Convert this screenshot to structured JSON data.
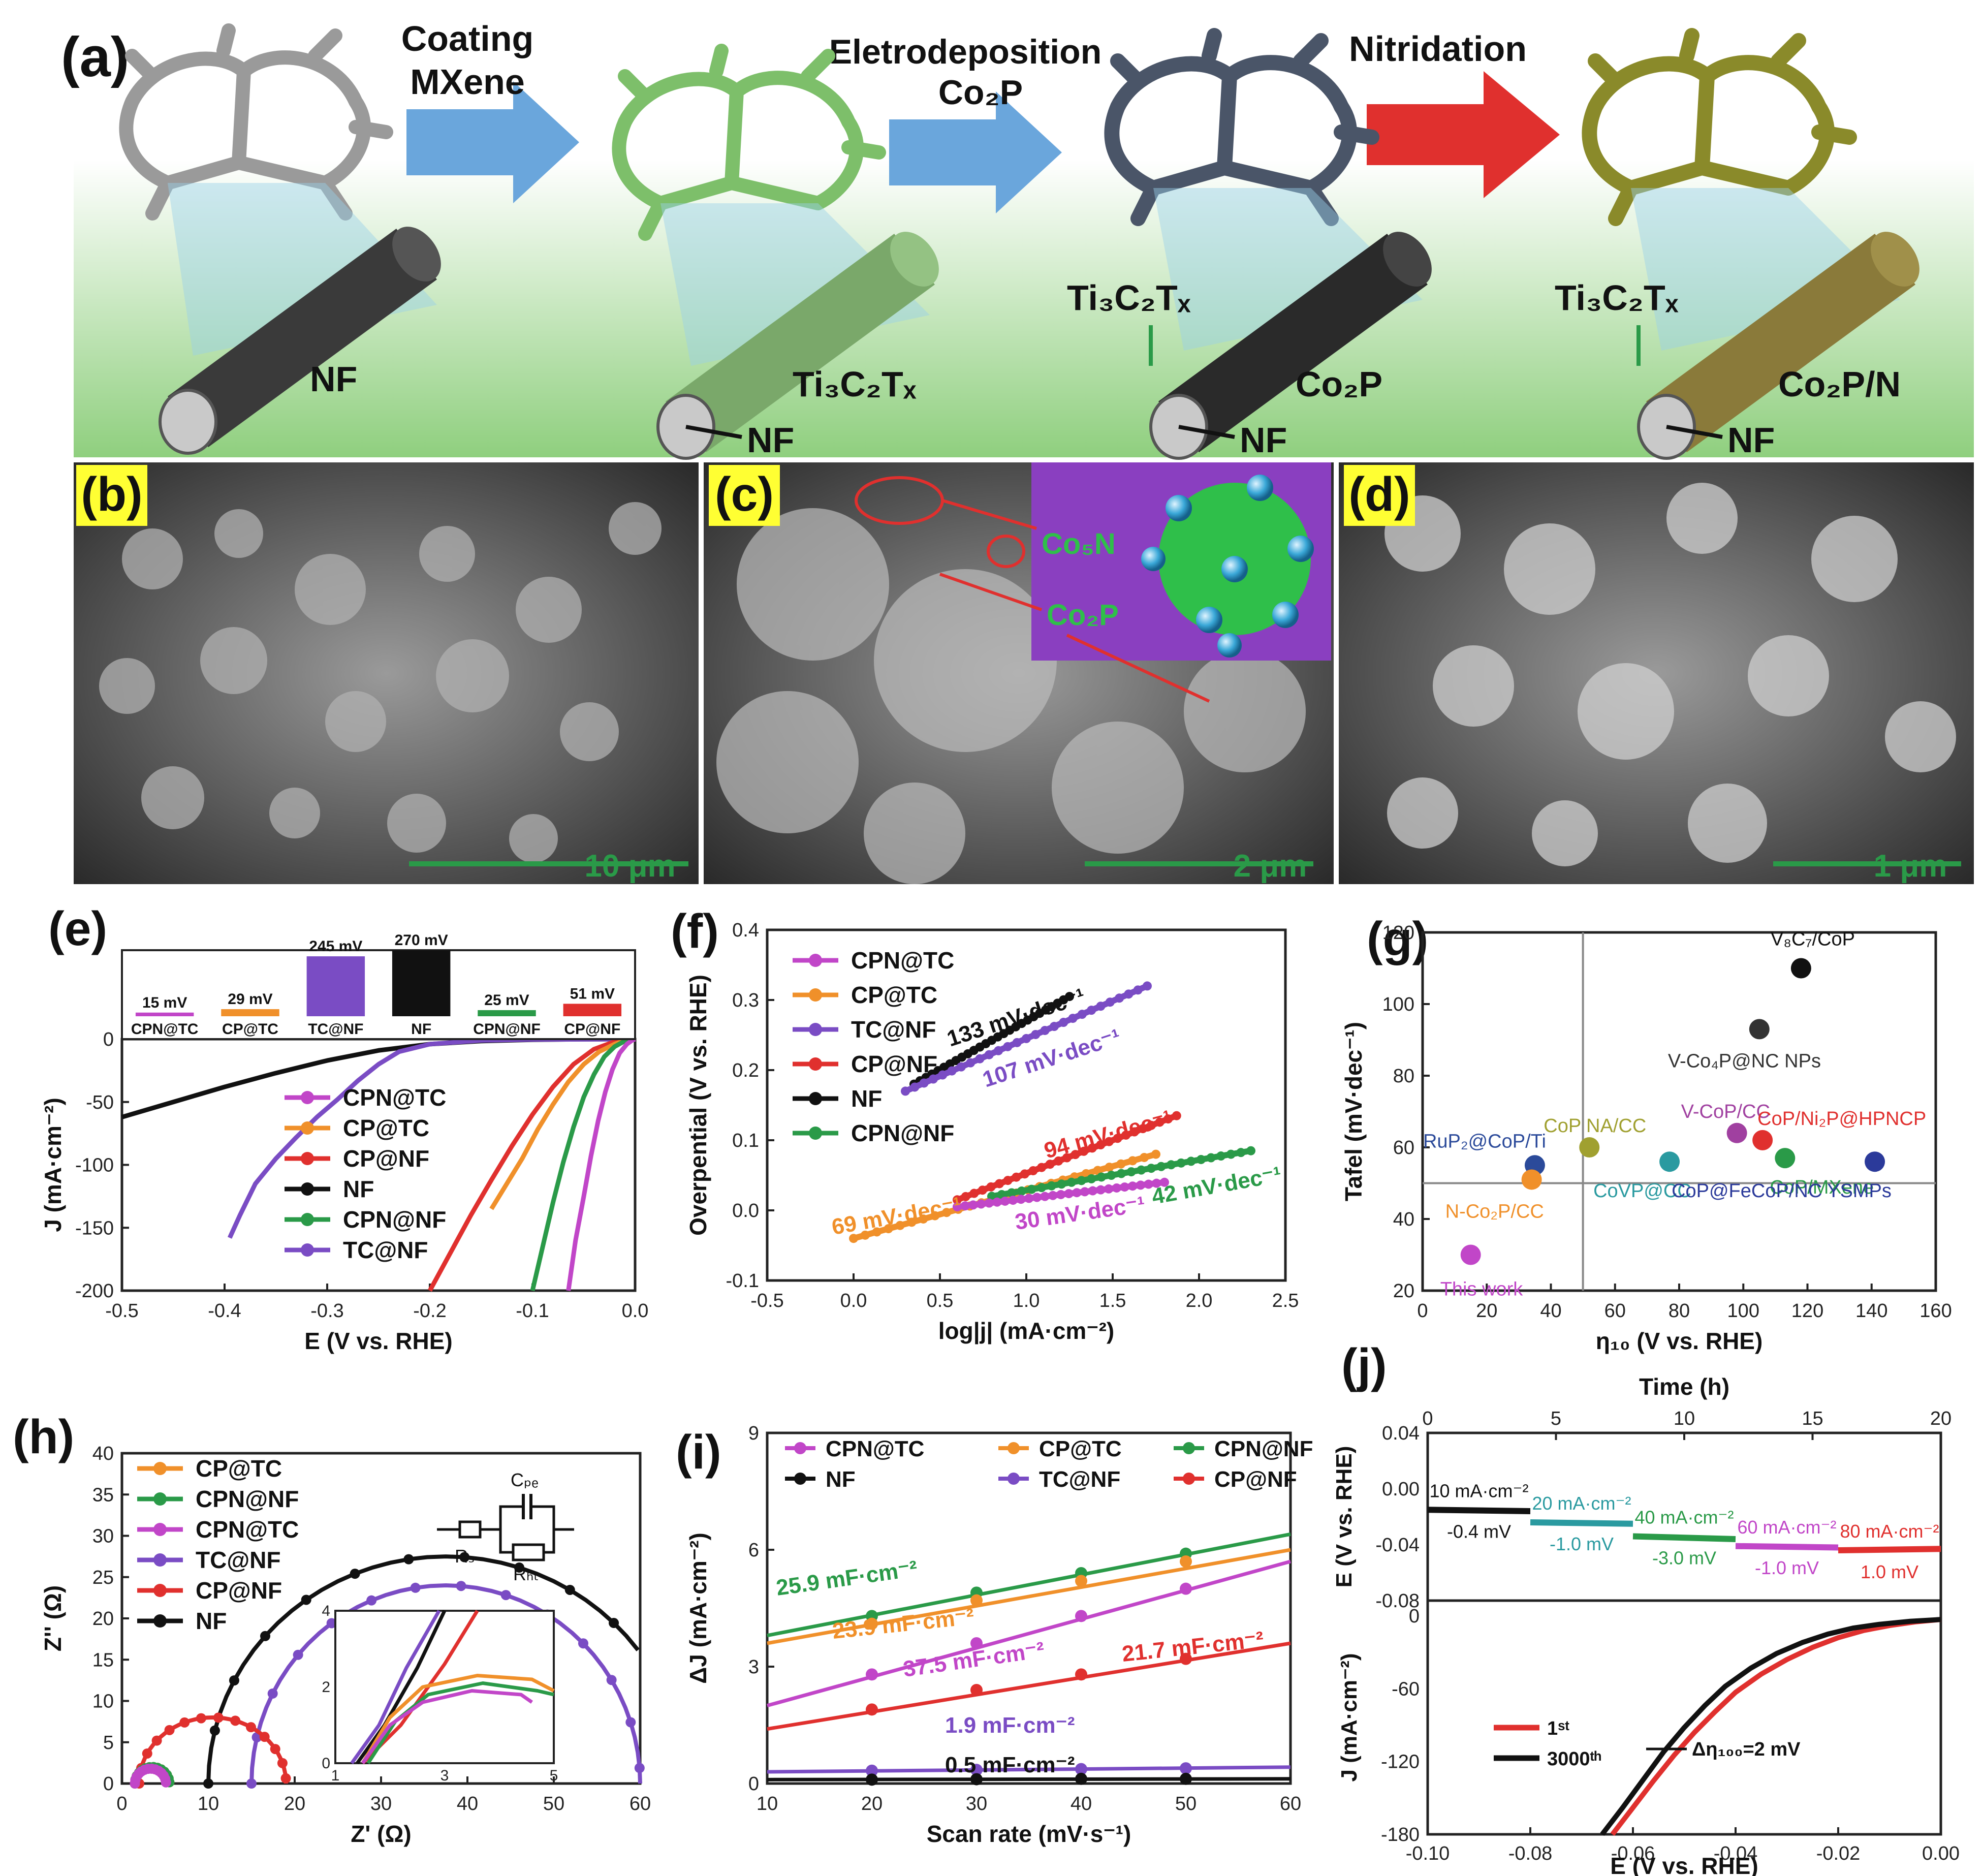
{
  "colors": {
    "CPN@TC": "#c146c8",
    "CP@TC": "#f0902a",
    "CP@NF": "#e0302e",
    "NF": "#111111",
    "CPN@NF": "#2a9a48",
    "TC@NF": "#7a4cc4",
    "panel_green": "#8fcf7e",
    "process_arrow": "#6aa6dc",
    "nitridation_arrow": "#e0302e"
  },
  "panel_a": {
    "label": "(a)",
    "arrow1": [
      "Coating",
      "MXene"
    ],
    "arrow2": [
      "Eletrodeposition",
      "Co₂P"
    ],
    "arrow3": "Nitridation",
    "rod1": "NF",
    "rod2_top": "Ti₃C₂Tₓ",
    "rod2_inner": "NF",
    "rod3_top": "Ti₃C₂Tₓ",
    "rod3_main": "Co₂P",
    "rod3_inner": "NF",
    "rod4_top": "Ti₃C₂Tₓ",
    "rod4_main": "Co₂P/N",
    "rod4_inner": "NF"
  },
  "panel_b": {
    "label": "(b)",
    "scale": "10 μm"
  },
  "panel_c": {
    "label": "(c)",
    "scale": "2 μm",
    "inset_1": "Co₅N",
    "inset_2": "Co₂P"
  },
  "panel_d": {
    "label": "(d)",
    "scale": "1 μm"
  },
  "panel_e": {
    "label": "(e)",
    "bars": [
      {
        "name": "CPN@TC",
        "value": "15 mV"
      },
      {
        "name": "CP@TC",
        "value": "29 mV"
      },
      {
        "name": "TC@NF",
        "value": "245 mV"
      },
      {
        "name": "NF",
        "value": "270 mV"
      },
      {
        "name": "CPN@NF",
        "value": "25 mV"
      },
      {
        "name": "CP@NF",
        "value": "51 mV"
      }
    ],
    "legend": [
      "CPN@TC",
      "CP@TC",
      "CP@NF",
      "NF",
      "CPN@NF",
      "TC@NF"
    ]
  },
  "panel_f": {
    "label": "(f)",
    "legend": [
      "CPN@TC",
      "CP@TC",
      "TC@NF",
      "CP@NF",
      "NF",
      "CPN@NF"
    ],
    "slopes": [
      "133 mV·dec⁻¹",
      "107 mV·dec⁻¹",
      "94 mV·dec⁻¹",
      "69 mV·dec⁻¹",
      "42 mV·dec⁻¹",
      "30 mV·dec⁻¹"
    ]
  },
  "panel_g": {
    "label": "(g)",
    "points": [
      {
        "name": "V₈C₇/CoP",
        "color": "#111111"
      },
      {
        "name": "V-Co₄P@NC NPs",
        "color": "#333333"
      },
      {
        "name": "CoP NA/CC",
        "color": "#a0a030"
      },
      {
        "name": "V-CoP/CC",
        "color": "#a040a0"
      },
      {
        "name": "CoP/Ni₂P@HPNCP",
        "color": "#e0302e"
      },
      {
        "name": "RuP₂@CoP/Ti",
        "color": "#2b4a9a"
      },
      {
        "name": "CoVP@CC",
        "color": "#2a9aa0"
      },
      {
        "name": "CoP/MXene",
        "color": "#2a9a48"
      },
      {
        "name": "N-Co₂P/CC",
        "color": "#f0902a"
      },
      {
        "name": "CoP@FeCoP/NC YSMPs",
        "color": "#2b3a9a"
      },
      {
        "name": "This work",
        "color": "#c146c8"
      }
    ]
  },
  "panel_h": {
    "label": "(h)",
    "legend": [
      "CP@TC",
      "CPN@NF",
      "CPN@TC",
      "TC@NF",
      "CP@NF",
      "NF"
    ],
    "circuit": [
      "Cₚₑ",
      "Rₛ",
      "Rₕₜ"
    ]
  },
  "panel_i": {
    "label": "(i)",
    "legend": [
      "CPN@TC",
      "CP@TC",
      "CPN@NF",
      "NF",
      "TC@NF",
      "CP@NF"
    ],
    "cdl": [
      "25.9 mF·cm⁻²",
      "23.9 mF·cm⁻²",
      "37.5 mF·cm⁻²",
      "21.7 mF·cm⁻²",
      "1.9 mF·cm⁻²",
      "0.5 mF·cm⁻²"
    ]
  },
  "panel_j": {
    "label": "(j)",
    "steps": [
      {
        "current": "10 mA·cm⁻²",
        "delta": "-0.4 mV"
      },
      {
        "current": "20 mA·cm⁻²",
        "delta": "-1.0 mV"
      },
      {
        "current": "40 mA·cm⁻²",
        "delta": "-3.0 mV"
      },
      {
        "current": "60 mA·cm⁻²",
        "delta": "-1.0 mV"
      },
      {
        "current": "80 mA·cm⁻²",
        "delta": "1.0 mV"
      }
    ],
    "legend": [
      "1ˢᵗ",
      "3000ᵗʰ"
    ],
    "delta_label": "Δη₁₀₀=2 mV"
  },
  "chart_data": [
    {
      "type": "line",
      "panel": "e",
      "xlabel": "E (V vs. RHE)",
      "ylabel": "J (mA·cm⁻²)",
      "xlim": [
        -0.5,
        0.0
      ],
      "ylim": [
        -200,
        0
      ],
      "xticks": [
        "-0.5",
        "-0.4",
        "-0.3",
        "-0.2",
        "-0.1",
        "0.0"
      ],
      "yticks": [
        "0",
        "-50",
        "-100",
        "-150",
        "-200"
      ],
      "series": [
        {
          "name": "NF",
          "x": [
            -0.5,
            -0.45,
            -0.4,
            -0.35,
            -0.3,
            -0.25,
            -0.2,
            -0.15,
            -0.1,
            -0.05,
            0.0
          ],
          "y": [
            -62,
            -50,
            -38,
            -27,
            -17,
            -9,
            -4,
            -1.5,
            -0.5,
            -0.1,
            0
          ]
        },
        {
          "name": "TC@NF",
          "x": [
            -0.395,
            -0.385,
            -0.37,
            -0.35,
            -0.33,
            -0.31,
            -0.29,
            -0.27,
            -0.25,
            -0.23,
            -0.2,
            -0.15,
            -0.1,
            0.0
          ],
          "y": [
            -158,
            -140,
            -115,
            -95,
            -78,
            -62,
            -48,
            -33,
            -20,
            -10,
            -4,
            -1,
            -0.3,
            0
          ]
        },
        {
          "name": "CP@NF",
          "x": [
            -0.2,
            -0.18,
            -0.16,
            -0.14,
            -0.12,
            -0.1,
            -0.08,
            -0.06,
            -0.04,
            -0.02,
            0.0
          ],
          "y": [
            -200,
            -170,
            -140,
            -112,
            -85,
            -60,
            -38,
            -20,
            -8,
            -2,
            0
          ]
        },
        {
          "name": "CP@TC",
          "x": [
            -0.14,
            -0.125,
            -0.11,
            -0.095,
            -0.08,
            -0.065,
            -0.05,
            -0.035,
            -0.02,
            -0.01,
            0.0
          ],
          "y": [
            -135,
            -115,
            -95,
            -72,
            -52,
            -34,
            -20,
            -10,
            -4,
            -1,
            0
          ]
        },
        {
          "name": "CPN@NF",
          "x": [
            -0.1,
            -0.09,
            -0.08,
            -0.07,
            -0.06,
            -0.05,
            -0.04,
            -0.03,
            -0.02,
            -0.01,
            0.0
          ],
          "y": [
            -200,
            -165,
            -130,
            -98,
            -70,
            -46,
            -28,
            -14,
            -6,
            -1.5,
            0
          ]
        },
        {
          "name": "CPN@TC",
          "x": [
            -0.065,
            -0.058,
            -0.05,
            -0.043,
            -0.036,
            -0.029,
            -0.022,
            -0.015,
            -0.008,
            -0.003,
            0.0
          ],
          "y": [
            -200,
            -160,
            -125,
            -93,
            -65,
            -42,
            -24,
            -11,
            -4,
            -1,
            0
          ]
        }
      ]
    },
    {
      "type": "bar",
      "panel": "e-inset",
      "ylabel": "",
      "categories": [
        "CPN@TC",
        "CP@TC",
        "TC@NF",
        "NF",
        "CPN@NF",
        "CP@NF"
      ],
      "values": [
        15,
        29,
        245,
        270,
        25,
        51
      ]
    },
    {
      "type": "scatter",
      "panel": "f",
      "xlabel": "log|j| (mA·cm⁻²)",
      "ylabel": "Overpential (V vs. RHE)",
      "xlim": [
        -0.5,
        2.5
      ],
      "ylim": [
        -0.1,
        0.4
      ],
      "xticks": [
        "-0.5",
        "0.0",
        "0.5",
        "1.0",
        "1.5",
        "2.0",
        "2.5"
      ],
      "yticks": [
        "-0.1",
        "0.0",
        "0.1",
        "0.2",
        "0.3",
        "0.4"
      ],
      "series": [
        {
          "name": "NF",
          "x_range": [
            0.35,
            1.25
          ],
          "y_range": [
            0.18,
            0.305
          ]
        },
        {
          "name": "TC@NF",
          "x_range": [
            0.3,
            1.7
          ],
          "y_range": [
            0.17,
            0.32
          ]
        },
        {
          "name": "CP@NF",
          "x_range": [
            0.6,
            1.87
          ],
          "y_range": [
            0.015,
            0.135
          ]
        },
        {
          "name": "CP@TC",
          "x_range": [
            0.0,
            1.75
          ],
          "y_range": [
            -0.04,
            0.08
          ]
        },
        {
          "name": "CPN@NF",
          "x_range": [
            0.8,
            2.3
          ],
          "y_range": [
            0.02,
            0.085
          ]
        },
        {
          "name": "CPN@TC",
          "x_range": [
            0.6,
            1.8
          ],
          "y_range": [
            0.005,
            0.04
          ]
        }
      ]
    },
    {
      "type": "scatter",
      "panel": "g",
      "xlabel": "η₁₀ (V vs. RHE)",
      "ylabel": "Tafel (mV·dec⁻¹)",
      "xlim": [
        0,
        160
      ],
      "ylim": [
        20,
        120
      ],
      "xticks": [
        "0",
        "20",
        "40",
        "60",
        "80",
        "100",
        "120",
        "140",
        "160"
      ],
      "yticks": [
        "20",
        "40",
        "60",
        "80",
        "100",
        "120"
      ],
      "series": [
        {
          "name": "V₈C₇/CoP",
          "x": [
            118
          ],
          "y": [
            110
          ]
        },
        {
          "name": "V-Co₄P@NC NPs",
          "x": [
            105
          ],
          "y": [
            93
          ]
        },
        {
          "name": "CoP NA/CC",
          "x": [
            52
          ],
          "y": [
            60
          ]
        },
        {
          "name": "V-CoP/CC",
          "x": [
            98
          ],
          "y": [
            64
          ]
        },
        {
          "name": "CoP/Ni₂P@HPNCP",
          "x": [
            106
          ],
          "y": [
            62
          ]
        },
        {
          "name": "RuP₂@CoP/Ti",
          "x": [
            35
          ],
          "y": [
            55
          ]
        },
        {
          "name": "CoVP@CC",
          "x": [
            77
          ],
          "y": [
            56
          ]
        },
        {
          "name": "CoP/MXene",
          "x": [
            113
          ],
          "y": [
            57
          ]
        },
        {
          "name": "N-Co₂P/CC",
          "x": [
            34
          ],
          "y": [
            51
          ]
        },
        {
          "name": "CoP@FeCoP/NC YSMPs",
          "x": [
            141
          ],
          "y": [
            56
          ]
        },
        {
          "name": "This work",
          "x": [
            15
          ],
          "y": [
            30
          ]
        }
      ]
    },
    {
      "type": "line",
      "panel": "h",
      "xlabel": "Z' (Ω)",
      "ylabel": "Z'' (Ω)",
      "xlim": [
        0,
        60
      ],
      "ylim": [
        0,
        40
      ],
      "xticks": [
        "0",
        "10",
        "20",
        "30",
        "40",
        "50",
        "60"
      ],
      "yticks": [
        "0",
        "5",
        "10",
        "15",
        "20",
        "25",
        "30",
        "35",
        "40"
      ],
      "series": [
        {
          "name": "NF",
          "center": 37.5,
          "radius": 27.5,
          "ymax": 27.5
        },
        {
          "name": "TC@NF",
          "center": 37.5,
          "radius": 22.5,
          "ymax": 24
        },
        {
          "name": "CP@NF",
          "center": 10.5,
          "radius": 8.5,
          "ymax": 8
        },
        {
          "name": "CP@TC",
          "center": 3.5,
          "radius": 2,
          "ymax": 2
        },
        {
          "name": "CPN@NF",
          "center": 3.5,
          "radius": 2,
          "ymax": 2
        },
        {
          "name": "CPN@TC",
          "center": 3.3,
          "radius": 1.8,
          "ymax": 1.8
        }
      ]
    },
    {
      "type": "scatter",
      "panel": "i",
      "xlabel": "Scan rate (mV·s⁻¹)",
      "ylabel": "ΔJ (mA·cm⁻²)",
      "xlim": [
        10,
        60
      ],
      "ylim": [
        0,
        9
      ],
      "xticks": [
        "10",
        "20",
        "30",
        "40",
        "50",
        "60"
      ],
      "yticks": [
        "0",
        "3",
        "6",
        "9"
      ],
      "x": [
        20,
        30,
        40,
        50
      ],
      "series": [
        {
          "name": "CPN@NF",
          "y": [
            4.3,
            4.9,
            5.4,
            5.9
          ],
          "line": [
            3.8,
            6.4
          ]
        },
        {
          "name": "CP@TC",
          "y": [
            4.1,
            4.7,
            5.2,
            5.7
          ],
          "line": [
            3.6,
            6.0
          ]
        },
        {
          "name": "CPN@TC",
          "y": [
            2.8,
            3.6,
            4.3,
            5.0
          ],
          "line": [
            2.0,
            5.7
          ]
        },
        {
          "name": "CP@NF",
          "y": [
            1.9,
            2.4,
            2.8,
            3.2
          ],
          "line": [
            1.4,
            3.6
          ]
        },
        {
          "name": "TC@NF",
          "y": [
            0.33,
            0.35,
            0.37,
            0.39
          ],
          "line": [
            0.3,
            0.42
          ]
        },
        {
          "name": "NF",
          "y": [
            0.1,
            0.11,
            0.12,
            0.12
          ],
          "line": [
            0.1,
            0.12
          ]
        }
      ]
    },
    {
      "type": "line",
      "panel": "j-top",
      "xlabel": "Time (h)",
      "ylabel": "E (V vs. RHE)",
      "xlim": [
        0,
        20
      ],
      "ylim": [
        -0.08,
        0.04
      ],
      "xticks": [
        "0",
        "5",
        "10",
        "15",
        "20"
      ],
      "yticks": [
        "0.04",
        "0.00",
        "-0.04",
        "-0.08"
      ],
      "series": [
        {
          "name": "10 mA·cm⁻²",
          "x": [
            0,
            4
          ],
          "y": [
            -0.015,
            -0.016
          ]
        },
        {
          "name": "20 mA·cm⁻²",
          "x": [
            4,
            8
          ],
          "y": [
            -0.024,
            -0.025
          ]
        },
        {
          "name": "40 mA·cm⁻²",
          "x": [
            8,
            12
          ],
          "y": [
            -0.034,
            -0.036
          ]
        },
        {
          "name": "60 mA·cm⁻²",
          "x": [
            12,
            16
          ],
          "y": [
            -0.041,
            -0.042
          ]
        },
        {
          "name": "80 mA·cm⁻²",
          "x": [
            16,
            20
          ],
          "y": [
            -0.044,
            -0.043
          ]
        }
      ]
    },
    {
      "type": "line",
      "panel": "j-bottom",
      "xlabel": "E (V vs. RHE)",
      "ylabel": "J (mA·cm⁻²)",
      "xlim": [
        -0.1,
        0.0
      ],
      "ylim": [
        -180,
        0
      ],
      "xticks": [
        "-0.10",
        "-0.08",
        "-0.06",
        "-0.04",
        "-0.02",
        "0.00"
      ],
      "yticks": [
        "0",
        "-60",
        "-120",
        "-180"
      ],
      "series": [
        {
          "name": "1st",
          "x": [
            -0.064,
            -0.06,
            -0.056,
            -0.052,
            -0.048,
            -0.044,
            -0.04,
            -0.035,
            -0.03,
            -0.025,
            -0.02,
            -0.015,
            -0.01,
            -0.005,
            0.0
          ],
          "y": [
            -180,
            -158,
            -136,
            -115,
            -96,
            -79,
            -63,
            -48,
            -36,
            -26,
            -18,
            -12,
            -8,
            -5,
            -3
          ]
        },
        {
          "name": "3000th",
          "x": [
            -0.066,
            -0.062,
            -0.058,
            -0.054,
            -0.05,
            -0.046,
            -0.042,
            -0.037,
            -0.032,
            -0.027,
            -0.022,
            -0.017,
            -0.012,
            -0.006,
            0.0
          ],
          "y": [
            -180,
            -158,
            -135,
            -112,
            -92,
            -74,
            -58,
            -43,
            -31,
            -22,
            -15,
            -10,
            -7,
            -4.5,
            -3
          ]
        }
      ]
    }
  ]
}
